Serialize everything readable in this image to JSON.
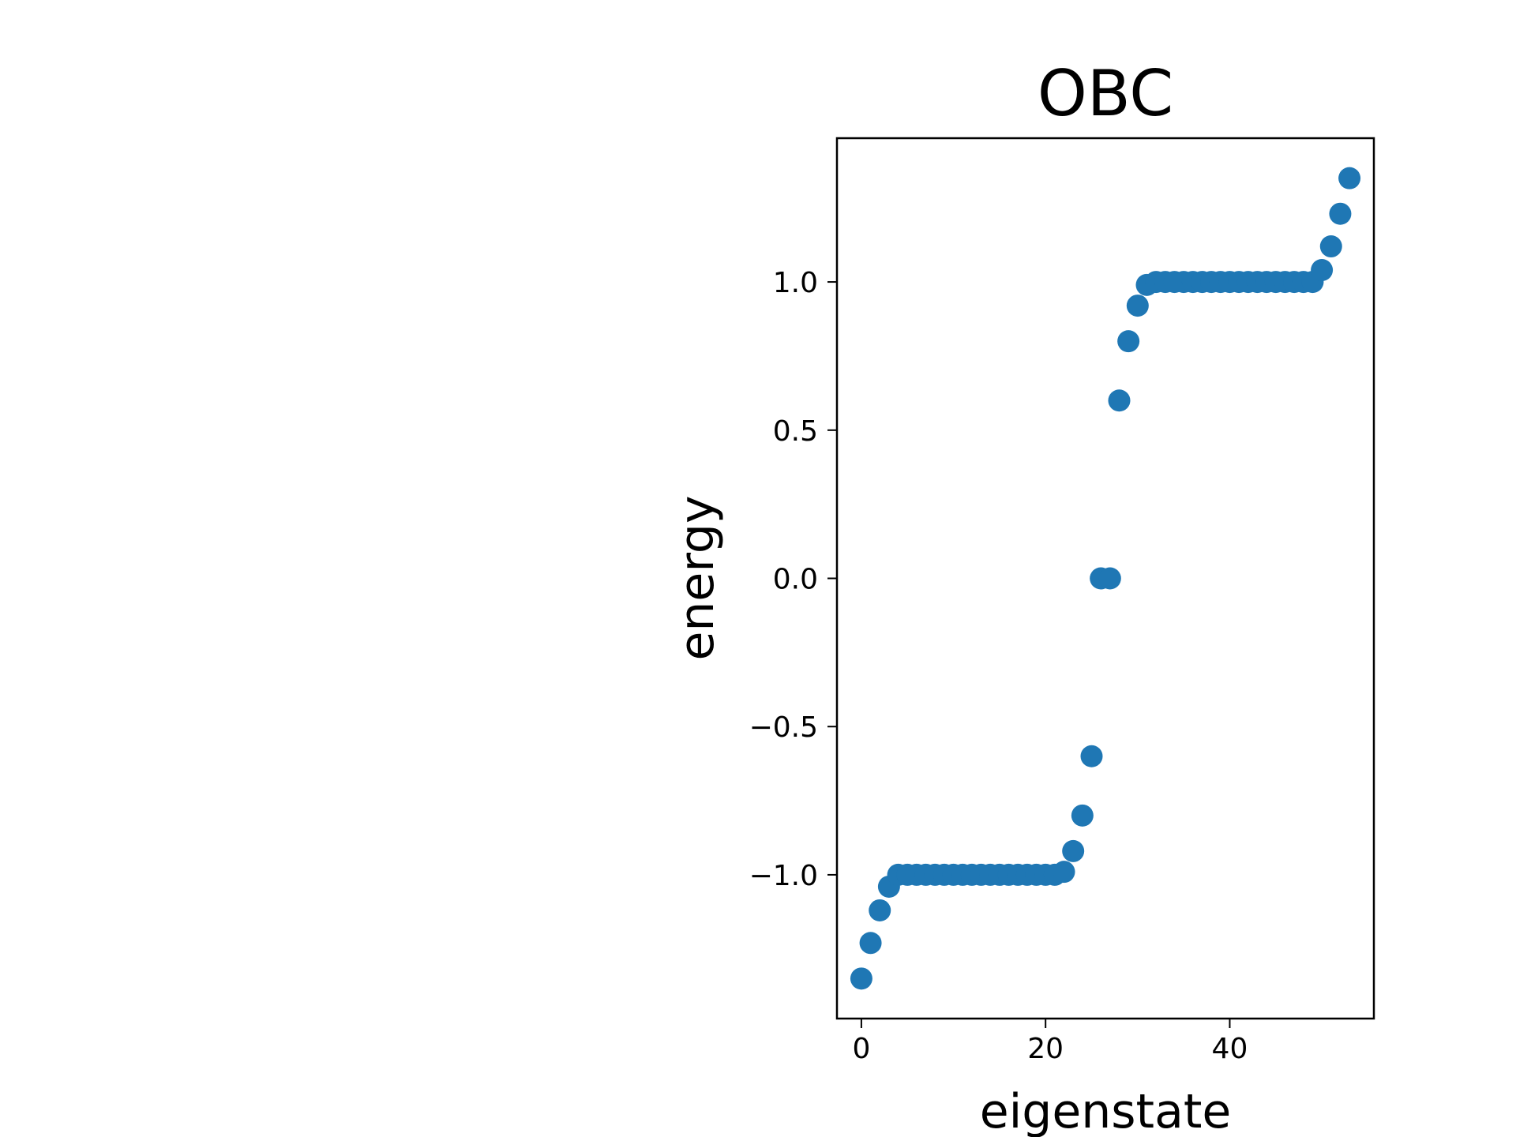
{
  "chart_data": {
    "type": "scatter",
    "title": "OBC",
    "xlabel": "eigenstate",
    "ylabel": "energy",
    "xlim": [
      -2.65,
      55.65
    ],
    "ylim": [
      -1.485,
      1.485
    ],
    "xticks": [
      0,
      20,
      40
    ],
    "xtick_labels": [
      "0",
      "20",
      "40"
    ],
    "yticks": [
      -1.0,
      -0.5,
      0.0,
      0.5,
      1.0
    ],
    "ytick_labels": [
      "−1.0",
      "−0.5",
      "0.0",
      "0.5",
      "1.0"
    ],
    "grid": false,
    "legend": null,
    "marker_color": "#1f77b4",
    "series": [
      {
        "x": [
          0,
          1,
          2,
          3,
          4,
          5,
          6,
          7,
          8,
          9,
          10,
          11,
          12,
          13,
          14,
          15,
          16,
          17,
          18,
          19,
          20,
          21,
          22,
          23,
          24,
          25,
          26,
          27,
          28,
          29,
          30,
          31,
          32,
          33,
          34,
          35,
          36,
          37,
          38,
          39,
          40,
          41,
          42,
          43,
          44,
          45,
          46,
          47,
          48,
          49,
          50,
          51,
          52,
          53
        ],
        "y": [
          -1.35,
          -1.23,
          -1.12,
          -1.04,
          -1.0,
          -1.0,
          -1.0,
          -1.0,
          -1.0,
          -1.0,
          -1.0,
          -1.0,
          -1.0,
          -1.0,
          -1.0,
          -1.0,
          -1.0,
          -1.0,
          -1.0,
          -1.0,
          -1.0,
          -1.0,
          -0.99,
          -0.92,
          -0.8,
          -0.6,
          0.0,
          0.0,
          0.6,
          0.8,
          0.92,
          0.99,
          1.0,
          1.0,
          1.0,
          1.0,
          1.0,
          1.0,
          1.0,
          1.0,
          1.0,
          1.0,
          1.0,
          1.0,
          1.0,
          1.0,
          1.0,
          1.0,
          1.0,
          1.0,
          1.04,
          1.12,
          1.23,
          1.35
        ]
      }
    ]
  }
}
